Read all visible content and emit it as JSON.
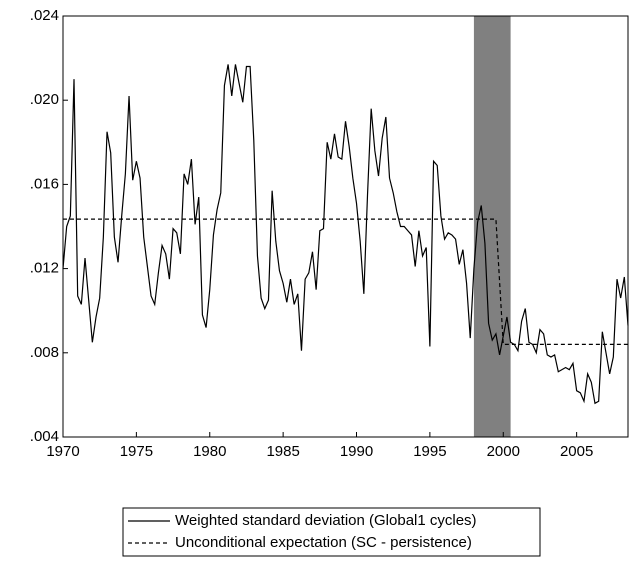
{
  "chart_data": {
    "type": "line",
    "xlim": [
      1970,
      2008.5
    ],
    "xticks": [
      1970,
      1975,
      1980,
      1985,
      1990,
      1995,
      2000,
      2005
    ],
    "ylim": [
      0.004,
      0.024
    ],
    "yticks": [
      {
        "value": 0.004,
        "label": ".004"
      },
      {
        "value": 0.008,
        "label": ".008"
      },
      {
        "value": 0.012,
        "label": ".012"
      },
      {
        "value": 0.016,
        "label": ".016"
      },
      {
        "value": 0.02,
        "label": ".020"
      },
      {
        "value": 0.024,
        "label": ".024"
      }
    ],
    "shaded": [
      1998,
      2000.5
    ],
    "shade_color": "#808080",
    "series": [
      {
        "name": "Weighted standard deviation (Global1 cycles)",
        "color": "#000000",
        "dash": false,
        "x": [
          1970,
          1970.25,
          1970.5,
          1970.75,
          1971,
          1971.25,
          1971.5,
          1971.75,
          1972,
          1972.25,
          1972.5,
          1972.75,
          1973,
          1973.25,
          1973.5,
          1973.75,
          1974,
          1974.25,
          1974.5,
          1974.75,
          1975,
          1975.25,
          1975.5,
          1975.75,
          1976,
          1976.25,
          1976.5,
          1976.75,
          1977,
          1977.25,
          1977.5,
          1977.75,
          1978,
          1978.25,
          1978.5,
          1978.75,
          1979,
          1979.25,
          1979.5,
          1979.75,
          1980,
          1980.25,
          1980.5,
          1980.75,
          1981,
          1981.25,
          1981.5,
          1981.75,
          1982,
          1982.25,
          1982.5,
          1982.75,
          1983,
          1983.25,
          1983.5,
          1983.75,
          1984,
          1984.25,
          1984.5,
          1984.75,
          1985,
          1985.25,
          1985.5,
          1985.75,
          1986,
          1986.25,
          1986.5,
          1986.75,
          1987,
          1987.25,
          1987.5,
          1987.75,
          1988,
          1988.25,
          1988.5,
          1988.75,
          1989,
          1989.25,
          1989.5,
          1989.75,
          1990,
          1990.25,
          1990.5,
          1990.75,
          1991,
          1991.25,
          1991.5,
          1991.75,
          1992,
          1992.25,
          1992.5,
          1992.75,
          1993,
          1993.25,
          1993.5,
          1993.75,
          1994,
          1994.25,
          1994.5,
          1994.75,
          1995,
          1995.25,
          1995.5,
          1995.75,
          1996,
          1996.25,
          1996.5,
          1996.75,
          1997,
          1997.25,
          1997.5,
          1997.75,
          1998,
          1998.25,
          1998.5,
          1998.75,
          1999,
          1999.25,
          1999.5,
          1999.75,
          2000,
          2000.25,
          2000.5,
          2000.75,
          2001,
          2001.25,
          2001.5,
          2001.75,
          2002,
          2002.25,
          2002.5,
          2002.75,
          2003,
          2003.25,
          2003.5,
          2003.75,
          2004,
          2004.25,
          2004.5,
          2004.75,
          2005,
          2005.25,
          2005.5,
          2005.75,
          2006,
          2006.25,
          2006.5,
          2006.75,
          2007,
          2007.25,
          2007.5,
          2007.75,
          2008,
          2008.25,
          2008.5
        ],
        "values": [
          0.012,
          0.014,
          0.0145,
          0.021,
          0.0107,
          0.0103,
          0.0125,
          0.0105,
          0.0085,
          0.0097,
          0.0106,
          0.0135,
          0.0185,
          0.0175,
          0.0135,
          0.0123,
          0.0145,
          0.0165,
          0.0202,
          0.0162,
          0.0171,
          0.0163,
          0.0135,
          0.0121,
          0.0107,
          0.0103,
          0.0118,
          0.0131,
          0.0127,
          0.0115,
          0.0139,
          0.0137,
          0.0127,
          0.0165,
          0.016,
          0.0172,
          0.0141,
          0.0154,
          0.0098,
          0.0092,
          0.011,
          0.0136,
          0.0148,
          0.0156,
          0.0207,
          0.0217,
          0.0202,
          0.0217,
          0.0208,
          0.0199,
          0.0216,
          0.0216,
          0.0181,
          0.0126,
          0.0106,
          0.0101,
          0.0105,
          0.0157,
          0.0133,
          0.0119,
          0.0113,
          0.0104,
          0.0115,
          0.0103,
          0.0108,
          0.0081,
          0.0115,
          0.0118,
          0.0128,
          0.011,
          0.0138,
          0.0139,
          0.018,
          0.0172,
          0.0184,
          0.0173,
          0.0172,
          0.019,
          0.0178,
          0.0163,
          0.0151,
          0.0133,
          0.0108,
          0.0155,
          0.0196,
          0.0176,
          0.0164,
          0.0182,
          0.0192,
          0.0163,
          0.0156,
          0.0147,
          0.014,
          0.014,
          0.0138,
          0.0136,
          0.0121,
          0.0138,
          0.0126,
          0.013,
          0.0083,
          0.0171,
          0.0169,
          0.0145,
          0.0134,
          0.0137,
          0.0136,
          0.0134,
          0.0122,
          0.0129,
          0.0113,
          0.0087,
          0.012,
          0.0142,
          0.015,
          0.0132,
          0.0094,
          0.0086,
          0.0089,
          0.0079,
          0.0088,
          0.0097,
          0.0085,
          0.0084,
          0.0081,
          0.0095,
          0.0101,
          0.0085,
          0.0084,
          0.008,
          0.0091,
          0.0089,
          0.0079,
          0.0078,
          0.0079,
          0.0071,
          0.0072,
          0.0073,
          0.0072,
          0.0075,
          0.0062,
          0.0061,
          0.0057,
          0.007,
          0.0066,
          0.0056,
          0.0057,
          0.009,
          0.008,
          0.007,
          0.0078,
          0.0115,
          0.0106,
          0.0116,
          0.0093
        ]
      },
      {
        "name": "Unconditional expectation (SC - persistence)",
        "color": "#000000",
        "dash": true,
        "x": [
          1970,
          1999.5,
          2000,
          2008.5
        ],
        "values": [
          0.01435,
          0.01435,
          0.0084,
          0.0084
        ]
      }
    ]
  }
}
